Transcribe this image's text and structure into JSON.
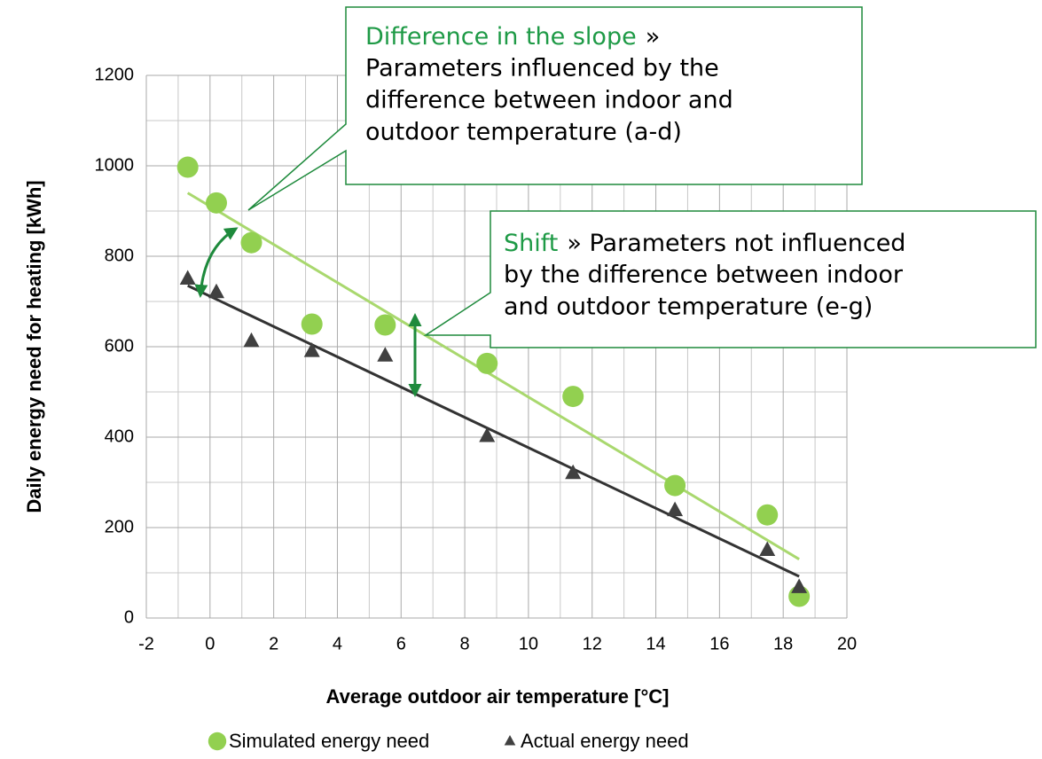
{
  "chart_data": {
    "type": "scatter",
    "x_label": "Average outdoor air temperature [°C]",
    "y_label": "Daily energy need for heating [kWh]",
    "xlim": [
      -2,
      20
    ],
    "ylim": [
      0,
      1200
    ],
    "xticks": [
      -2,
      0,
      2,
      4,
      6,
      8,
      10,
      12,
      14,
      16,
      18,
      20
    ],
    "yticks": [
      0,
      200,
      400,
      600,
      800,
      1000,
      1200
    ],
    "xminorticks": [
      -1,
      1,
      3,
      5,
      7,
      9,
      11,
      13,
      15,
      17,
      19
    ],
    "yminorticks": [
      100,
      300,
      500,
      700,
      900,
      1100
    ],
    "grid": true,
    "legend": "bottom",
    "series": [
      {
        "name": "Simulated energy need",
        "color": "#92d050",
        "marker": "circle",
        "x": [
          -0.7,
          0.2,
          1.3,
          3.2,
          5.5,
          8.7,
          11.4,
          14.6,
          17.5,
          18.5
        ],
        "values": [
          997,
          918,
          830,
          650,
          648,
          563,
          490,
          293,
          228,
          48
        ]
      },
      {
        "name": "Actual energy need",
        "color": "#404040",
        "marker": "triangle",
        "x": [
          -0.7,
          0.2,
          1.3,
          3.2,
          5.5,
          8.7,
          11.4,
          14.6,
          17.5,
          18.5
        ],
        "values": [
          750,
          720,
          612,
          590,
          580,
          402,
          320,
          238,
          150,
          68
        ]
      }
    ],
    "trendlines": [
      {
        "color": "#a9d86e",
        "x": [
          -0.7,
          18.5
        ],
        "values": [
          940,
          130
        ]
      },
      {
        "color": "#333333",
        "x": [
          -0.7,
          18.5
        ],
        "values": [
          735,
          92
        ]
      }
    ],
    "annotations": [
      {
        "highlight": "Difference in the slope",
        "lines": [
          "»",
          "Parameters influenced by the",
          "difference between indoor and",
          "outdoor temperature (a-d)"
        ]
      },
      {
        "highlight": "Shift",
        "lines": [
          "» Parameters not influenced",
          "by the difference between indoor",
          "and outdoor temperature (e-g)"
        ]
      }
    ]
  }
}
